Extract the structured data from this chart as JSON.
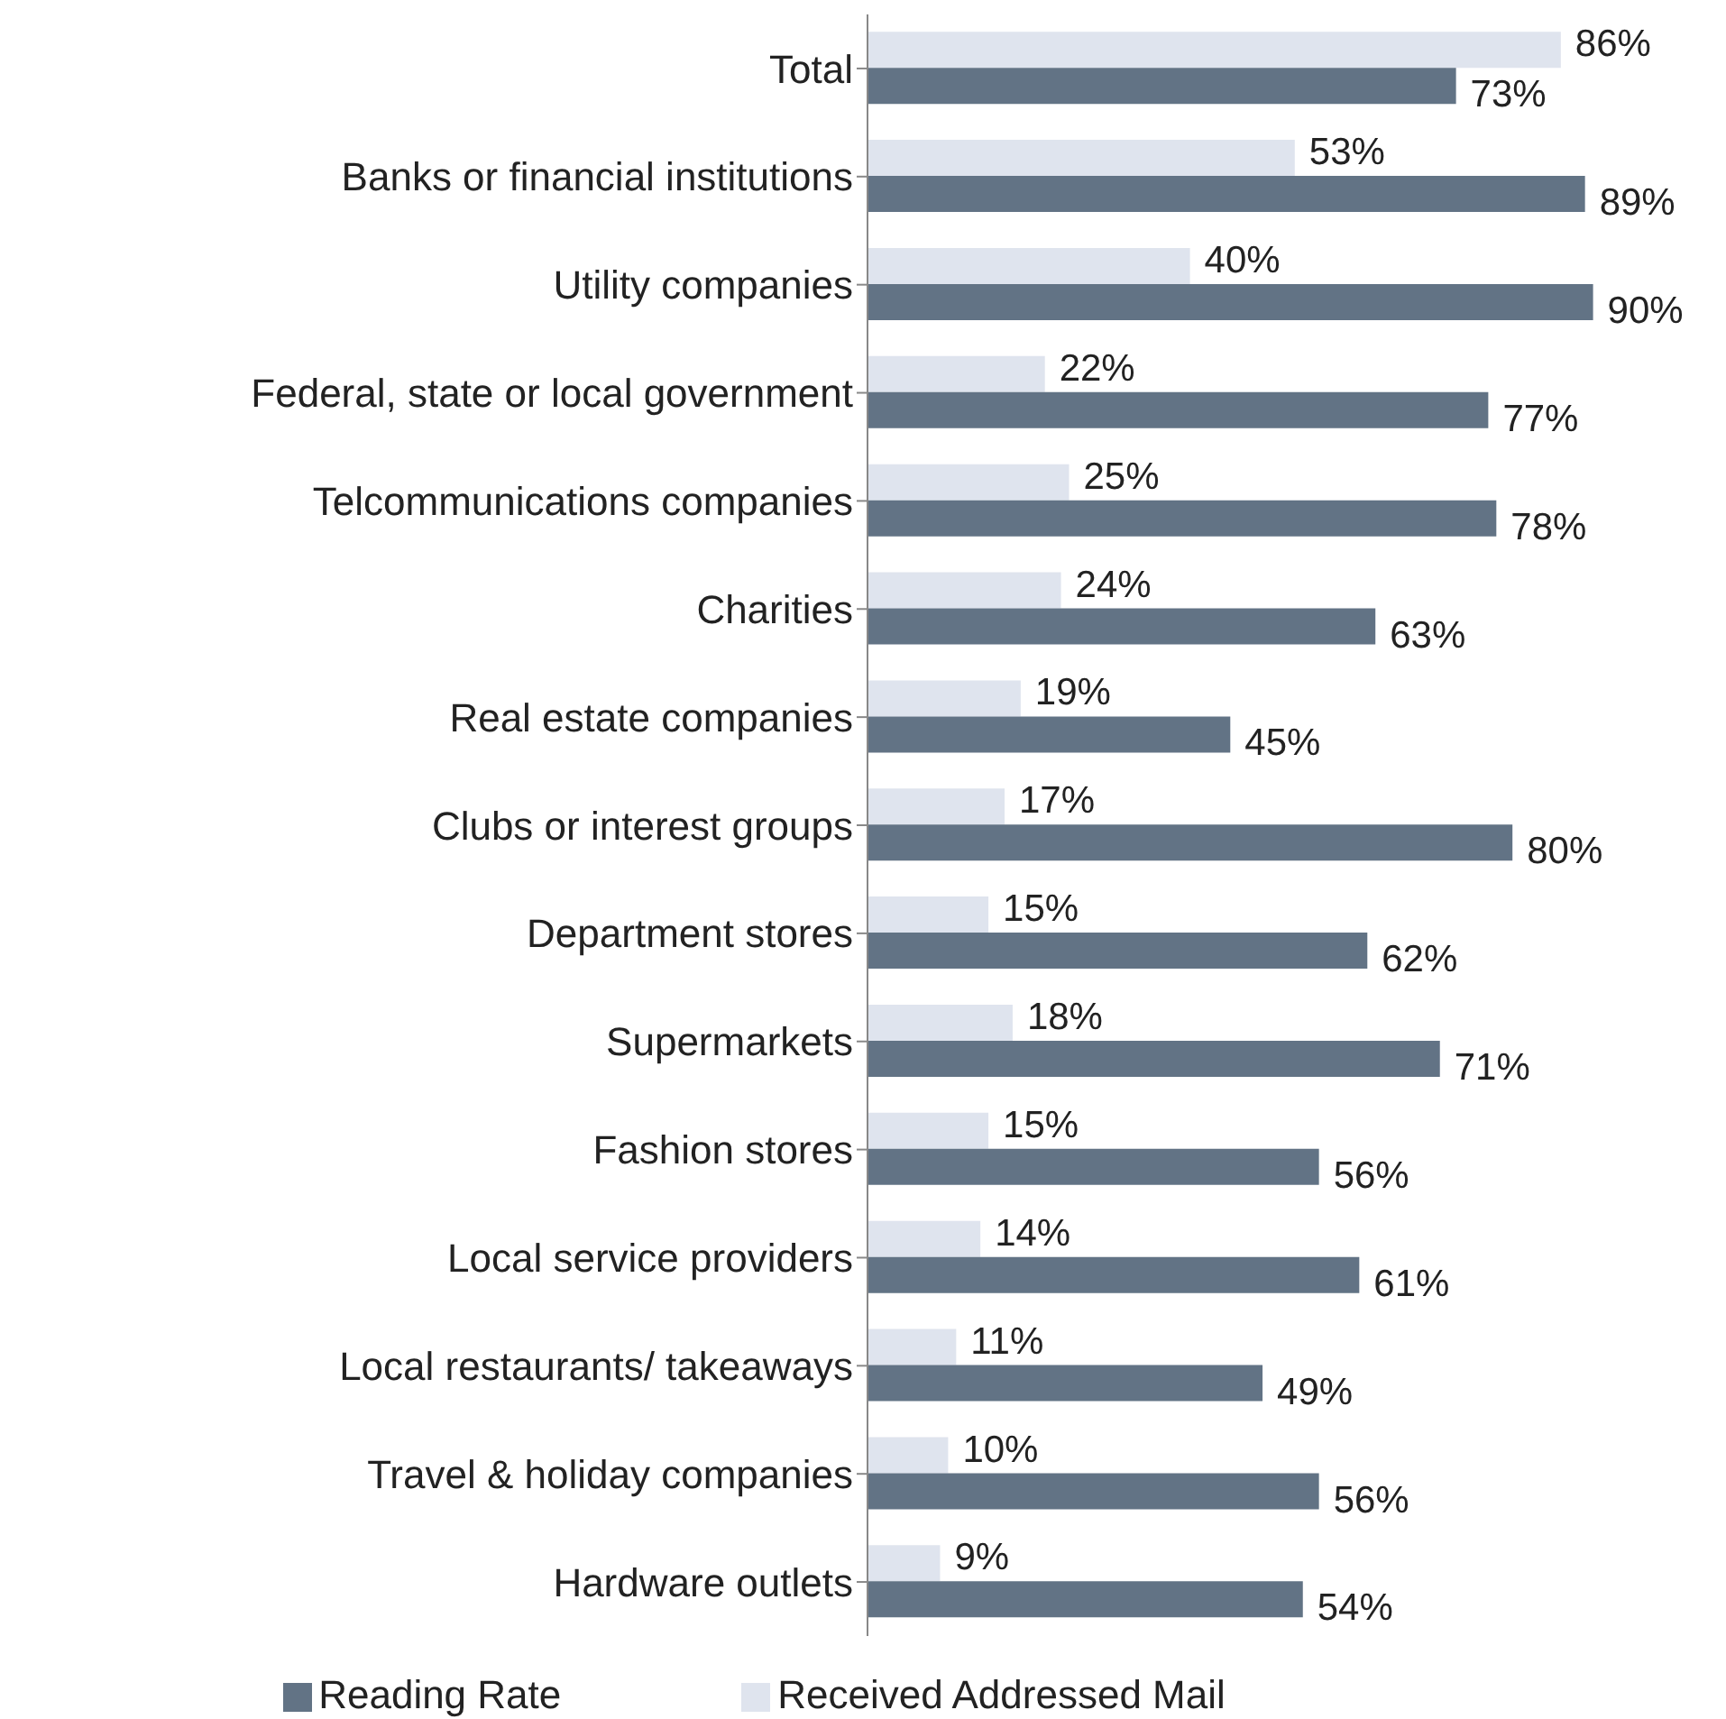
{
  "chart_data": {
    "type": "bar",
    "orientation": "horizontal",
    "legend": "bottom",
    "grid": false,
    "categories": [
      "Total",
      "Banks or financial institutions",
      "Utility companies",
      "Federal, state or local government",
      "Telcommunications companies",
      "Charities",
      "Real estate companies",
      "Clubs or interest groups",
      "Department stores",
      "Supermarkets",
      "Fashion stores",
      "Local  service providers",
      "Local restaurants/ takeaways",
      "Travel & holiday companies",
      "Hardware outlets"
    ],
    "series": [
      {
        "name": "Received Addressed Mail",
        "color": "#dfe4ee",
        "values": [
          86,
          53,
          40,
          22,
          25,
          24,
          19,
          17,
          15,
          18,
          15,
          14,
          11,
          10,
          9
        ],
        "value_labels": [
          "86%",
          "53%",
          "40%",
          "22%",
          "25%",
          "24%",
          "19%",
          "17%",
          "15%",
          "18%",
          "15%",
          "14%",
          "11%",
          "10%",
          "9%"
        ]
      },
      {
        "name": "Reading Rate",
        "color": "#627385",
        "values": [
          73,
          89,
          90,
          77,
          78,
          63,
          45,
          80,
          62,
          71,
          56,
          61,
          49,
          56,
          54
        ],
        "value_labels": [
          "73%",
          "89%",
          "90%",
          "77%",
          "78%",
          "63%",
          "45%",
          "80%",
          "62%",
          "71%",
          "56%",
          "61%",
          "49%",
          "56%",
          "54%"
        ]
      }
    ]
  }
}
